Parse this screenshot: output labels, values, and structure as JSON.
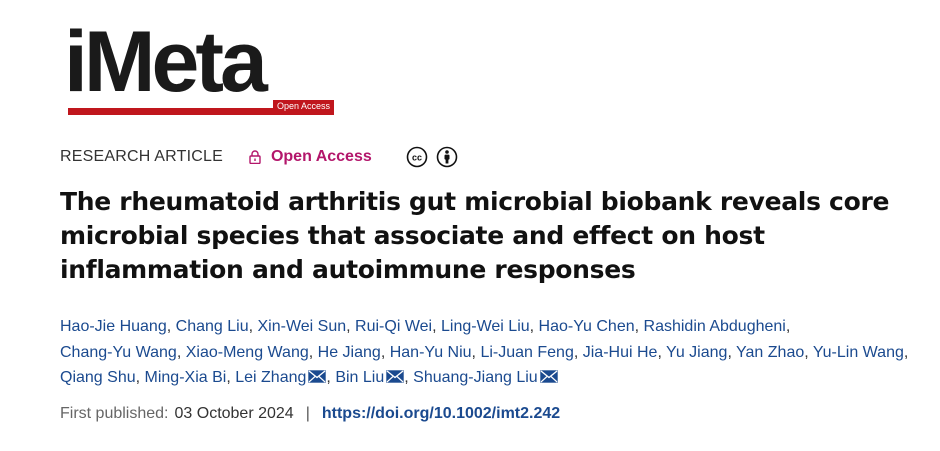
{
  "journal": {
    "name": "iMeta",
    "badge": "Open Access"
  },
  "article": {
    "type": "RESEARCH ARTICLE",
    "access": "Open Access",
    "license_icons": [
      "cc-icon",
      "by-attribution-icon"
    ],
    "title": "The rheumatoid arthritis gut microbial biobank reveals core microbial species that associate and effect on host inflammation and autoimmune responses"
  },
  "authors": [
    {
      "name": "Hao-Jie Huang",
      "corresponding": false
    },
    {
      "name": "Chang Liu",
      "corresponding": false
    },
    {
      "name": "Xin-Wei Sun",
      "corresponding": false
    },
    {
      "name": "Rui-Qi Wei",
      "corresponding": false
    },
    {
      "name": "Ling-Wei Liu",
      "corresponding": false
    },
    {
      "name": "Hao-Yu Chen",
      "corresponding": false
    },
    {
      "name": "Rashidin Abdugheni",
      "corresponding": false
    },
    {
      "name": "Chang-Yu Wang",
      "corresponding": false
    },
    {
      "name": "Xiao-Meng Wang",
      "corresponding": false
    },
    {
      "name": "He Jiang",
      "corresponding": false
    },
    {
      "name": "Han-Yu Niu",
      "corresponding": false
    },
    {
      "name": "Li-Juan Feng",
      "corresponding": false
    },
    {
      "name": "Jia-Hui He",
      "corresponding": false
    },
    {
      "name": "Yu Jiang",
      "corresponding": false
    },
    {
      "name": "Yan Zhao",
      "corresponding": false
    },
    {
      "name": "Yu-Lin Wang",
      "corresponding": false
    },
    {
      "name": "Qiang Shu",
      "corresponding": false
    },
    {
      "name": "Ming-Xia Bi",
      "corresponding": false
    },
    {
      "name": "Lei Zhang",
      "corresponding": true
    },
    {
      "name": "Bin Liu",
      "corresponding": true
    },
    {
      "name": "Shuang-Jiang Liu",
      "corresponding": true
    }
  ],
  "publication": {
    "label": "First published:",
    "date": "03 October 2024",
    "separator": "|",
    "doi": "https://doi.org/10.1002/imt2.242"
  },
  "colors": {
    "brand_red": "#c0161d",
    "open_access": "#b3166b",
    "link": "#1b4a8f"
  }
}
